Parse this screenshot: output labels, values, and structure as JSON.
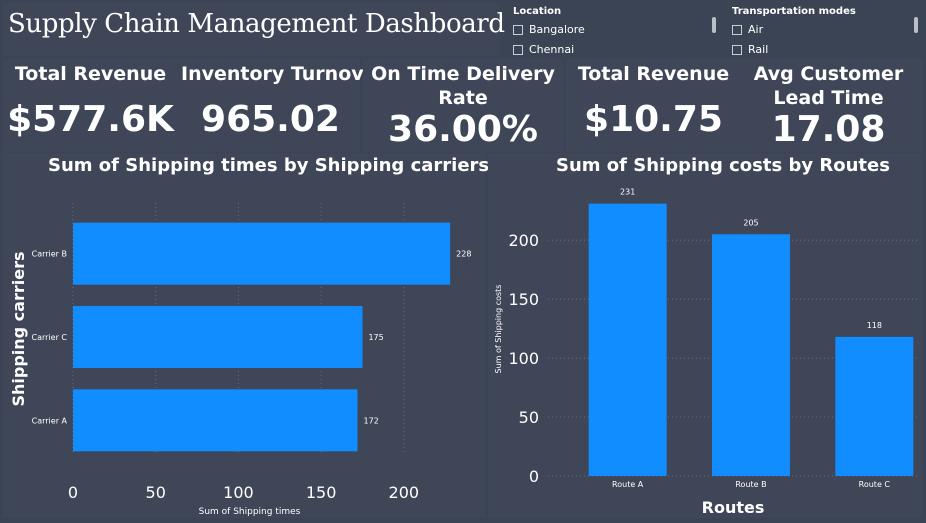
{
  "dashboard": {
    "title": "Supply Chain Management Dashboard"
  },
  "slicers": {
    "location": {
      "header": "Location",
      "options": [
        "Bangalore",
        "Chennai"
      ]
    },
    "transport": {
      "header": "Transportation modes",
      "options": [
        "Air",
        "Rail"
      ]
    }
  },
  "kpis": [
    {
      "label": "Total Revenue",
      "value": "$577.6K"
    },
    {
      "label": "Inventory Turnover",
      "value": "965.02"
    },
    {
      "label_line1": "On Time Delivery",
      "label_line2": "Rate",
      "value": "36.00%"
    },
    {
      "label": "Total Revenue",
      "value": "$10.75"
    },
    {
      "label_line1": "Avg Customer",
      "label_line2": "Lead Time",
      "value": "17.08"
    }
  ],
  "chart_data": [
    {
      "type": "bar",
      "orientation": "horizontal",
      "title": "Sum of Shipping times by Shipping carriers",
      "categories": [
        "Carrier B",
        "Carrier C",
        "Carrier A"
      ],
      "values": [
        228,
        175,
        172
      ],
      "xlabel": "Sum of Shipping times",
      "ylabel": "Shipping carriers",
      "xlim": [
        0,
        240
      ],
      "xticks": [
        0,
        50,
        100,
        150,
        200
      ],
      "grid": true,
      "color": "#118dff"
    },
    {
      "type": "bar",
      "orientation": "vertical",
      "title": "Sum of Shipping costs by Routes",
      "categories": [
        "Route A",
        "Route B",
        "Route C"
      ],
      "values": [
        231,
        205,
        118
      ],
      "xlabel": "Routes",
      "ylabel": "Sum of Shipping costs",
      "ylim": [
        0,
        240
      ],
      "yticks": [
        0,
        50,
        100,
        150,
        200
      ],
      "grid": true,
      "color": "#118dff"
    }
  ]
}
